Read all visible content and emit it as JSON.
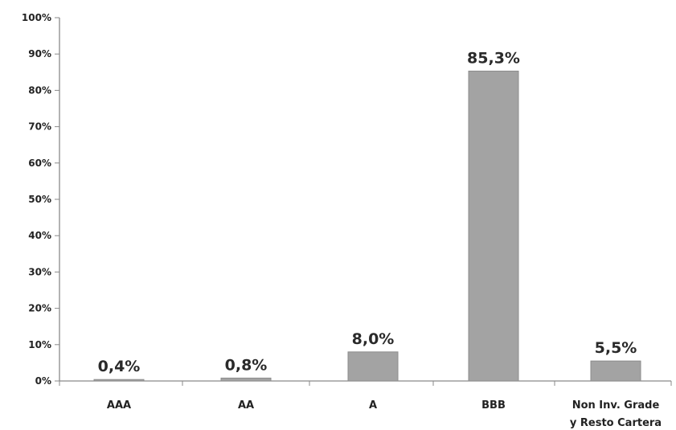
{
  "chart_data": {
    "type": "bar",
    "categories": [
      "AAA",
      "AA",
      "A",
      "BBB",
      "Non Inv. Grade y Resto Cartera"
    ],
    "category_lines": [
      [
        "AAA"
      ],
      [
        "AA"
      ],
      [
        "A"
      ],
      [
        "BBB"
      ],
      [
        "Non Inv. Grade",
        "y Resto Cartera"
      ]
    ],
    "values": [
      0.4,
      0.8,
      8.0,
      85.3,
      5.5
    ],
    "data_labels": [
      "0,4%",
      "0,8%",
      "8,0%",
      "85,3%",
      "5,5%"
    ],
    "ylim": [
      0,
      100
    ],
    "yticks": [
      0,
      10,
      20,
      30,
      40,
      50,
      60,
      70,
      80,
      90,
      100
    ],
    "ytick_labels": [
      "0%",
      "10%",
      "20%",
      "30%",
      "40%",
      "50%",
      "60%",
      "70%",
      "80%",
      "90%",
      "100%"
    ],
    "title": "",
    "xlabel": "",
    "ylabel": "",
    "grid": false,
    "legend": "none",
    "bar_color": "#a3a3a3",
    "bar_edge_color": "#8c8c8c"
  }
}
